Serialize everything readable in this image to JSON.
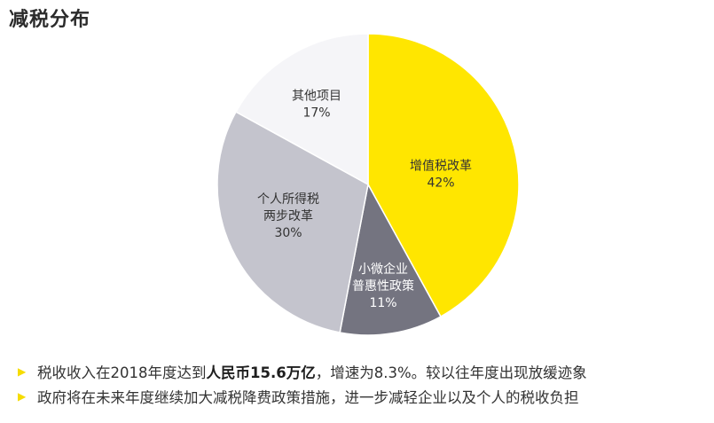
{
  "title": "减税分布",
  "chart_data": {
    "type": "pie",
    "title": "",
    "slices": [
      {
        "label": [
          "增值税改革"
        ],
        "value": 42,
        "value_label": "42%",
        "color": "#ffe600",
        "label_color": "#333333"
      },
      {
        "label": [
          "小微企业",
          "普惠性政策"
        ],
        "value": 11,
        "value_label": "11%",
        "color": "#747480",
        "label_color": "#ffffff"
      },
      {
        "label": [
          "个人所得税",
          "两步改革"
        ],
        "value": 30,
        "value_label": "30%",
        "color": "#c4c4cd",
        "label_color": "#333333"
      },
      {
        "label": [
          "其他项目"
        ],
        "value": 17,
        "value_label": "17%",
        "color": "#f5f5f8",
        "label_color": "#333333"
      }
    ],
    "start_angle_deg": 0,
    "direction": "clockwise",
    "legend": "none",
    "separator_color": "#ffffff"
  },
  "bullets": [
    {
      "marker": "▶",
      "before": "税收收入在2018年度达到",
      "bold": "人民币15.6万亿",
      "after": "，增速为8.3%。较以往年度出现放缓迹象"
    },
    {
      "marker": "▶",
      "before": "政府将在未来年度继续加大减税降费政策措施，进一步减轻企业以及个人的税收负担",
      "bold": "",
      "after": ""
    }
  ],
  "colors": {
    "accent": "#ffe600",
    "bullet_marker": "#f6dc00"
  }
}
